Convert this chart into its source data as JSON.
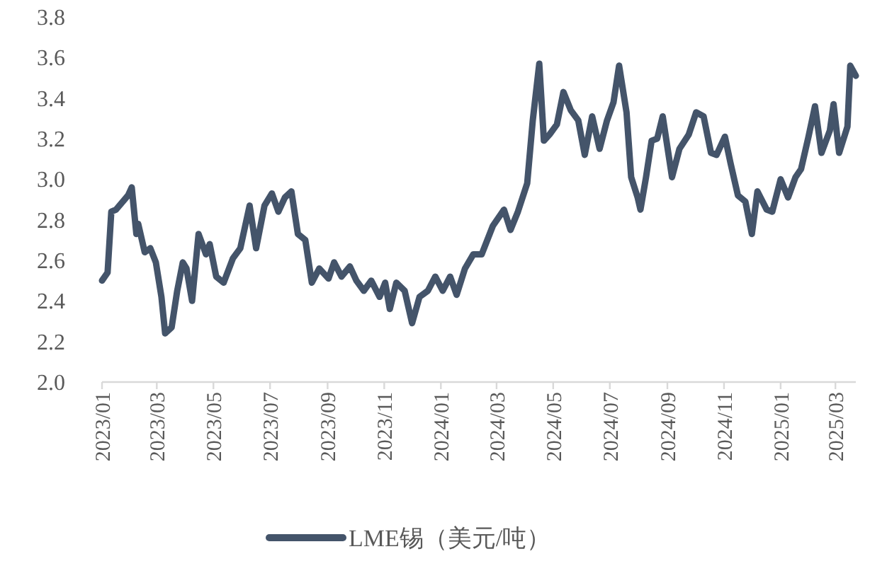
{
  "chart_data": {
    "type": "line",
    "legend": "bottom",
    "grid": false,
    "xlim": [
      "2023-01-01",
      "2025-03-23"
    ],
    "ylim": [
      2.0,
      3.8
    ],
    "yticks": [
      {
        "value": 2,
        "label": "2.0"
      },
      2.2,
      2.4,
      2.6,
      2.8,
      {
        "value": 3,
        "label": "3.0"
      },
      3.2,
      3.4,
      3.6,
      3.8
    ],
    "xticks": [
      {
        "value": "2023-01-01",
        "label": "2023/01"
      },
      {
        "value": "2023-03-01",
        "label": "2023/03"
      },
      {
        "value": "2023-05-01",
        "label": "2023/05"
      },
      {
        "value": "2023-07-01",
        "label": "2023/07"
      },
      {
        "value": "2023-09-01",
        "label": "2023/09"
      },
      {
        "value": "2023-11-01",
        "label": "2023/11"
      },
      {
        "value": "2024-01-01",
        "label": "2024/01"
      },
      {
        "value": "2024-03-01",
        "label": "2024/03"
      },
      {
        "value": "2024-05-01",
        "label": "2024/05"
      },
      {
        "value": "2024-07-01",
        "label": "2024/07"
      },
      {
        "value": "2024-09-01",
        "label": "2024/09"
      },
      {
        "value": "2024-11-01",
        "label": "2024/11"
      },
      {
        "value": "2025-01-01",
        "label": "2025/01"
      },
      {
        "value": "2025-03-01",
        "label": "2025/03"
      }
    ],
    "x": [
      "2023-01-01",
      "2023-01-07",
      "2023-01-11",
      "2023-01-16",
      "2023-01-29",
      "2023-02-02",
      "2023-02-07",
      "2023-02-09",
      "2023-02-16",
      "2023-02-22",
      "2023-02-28",
      "2023-03-06",
      "2023-03-10",
      "2023-03-17",
      "2023-03-23",
      "2023-03-29",
      "2023-04-02",
      "2023-04-08",
      "2023-04-15",
      "2023-04-23",
      "2023-04-27",
      "2023-05-04",
      "2023-05-12",
      "2023-05-22",
      "2023-05-30",
      "2023-06-09",
      "2023-06-16",
      "2023-06-25",
      "2023-07-03",
      "2023-07-10",
      "2023-07-17",
      "2023-07-24",
      "2023-07-31",
      "2023-08-08",
      "2023-08-15",
      "2023-08-23",
      "2023-09-02",
      "2023-09-08",
      "2023-09-16",
      "2023-09-25",
      "2023-10-02",
      "2023-10-10",
      "2023-10-18",
      "2023-10-27",
      "2023-11-02",
      "2023-11-07",
      "2023-11-14",
      "2023-11-23",
      "2023-12-01",
      "2023-12-09",
      "2023-12-18",
      "2023-12-26",
      "2024-01-03",
      "2024-01-11",
      "2024-01-18",
      "2024-01-27",
      "2024-02-05",
      "2024-02-14",
      "2024-02-26",
      "2024-03-09",
      "2024-03-16",
      "2024-03-24",
      "2024-04-03",
      "2024-04-09",
      "2024-04-16",
      "2024-04-21",
      "2024-04-27",
      "2024-05-05",
      "2024-05-12",
      "2024-05-20",
      "2024-05-28",
      "2024-06-04",
      "2024-06-12",
      "2024-06-20",
      "2024-06-28",
      "2024-07-05",
      "2024-07-11",
      "2024-07-19",
      "2024-07-24",
      "2024-07-31",
      "2024-08-03",
      "2024-08-09",
      "2024-08-15",
      "2024-08-21",
      "2024-08-27",
      "2024-09-06",
      "2024-09-14",
      "2024-09-24",
      "2024-10-02",
      "2024-10-10",
      "2024-10-18",
      "2024-10-24",
      "2024-11-02",
      "2024-11-08",
      "2024-11-16",
      "2024-11-24",
      "2024-12-01",
      "2024-12-07",
      "2024-12-17",
      "2024-12-23",
      "2025-01-01",
      "2025-01-09",
      "2025-01-17",
      "2025-01-23",
      "2025-01-31",
      "2025-02-07",
      "2025-02-14",
      "2025-02-23",
      "2025-02-27",
      "2025-03-05",
      "2025-03-14",
      "2025-03-17",
      "2025-03-23"
    ],
    "series": [
      {
        "name": "LME锡（美元/吨）",
        "color": "#44546a",
        "values": [
          2.5,
          2.54,
          2.84,
          2.85,
          2.92,
          2.96,
          2.73,
          2.78,
          2.64,
          2.66,
          2.59,
          2.42,
          2.24,
          2.27,
          2.45,
          2.59,
          2.56,
          2.4,
          2.73,
          2.63,
          2.68,
          2.52,
          2.49,
          2.61,
          2.66,
          2.87,
          2.66,
          2.87,
          2.93,
          2.84,
          2.91,
          2.94,
          2.73,
          2.7,
          2.49,
          2.56,
          2.51,
          2.59,
          2.52,
          2.57,
          2.5,
          2.45,
          2.5,
          2.42,
          2.49,
          2.36,
          2.49,
          2.45,
          2.29,
          2.42,
          2.45,
          2.52,
          2.45,
          2.52,
          2.43,
          2.56,
          2.63,
          2.63,
          2.77,
          2.85,
          2.75,
          2.84,
          2.98,
          3.29,
          3.57,
          3.19,
          3.22,
          3.27,
          3.43,
          3.34,
          3.29,
          3.12,
          3.31,
          3.15,
          3.29,
          3.38,
          3.56,
          3.33,
          3.01,
          2.91,
          2.85,
          3.01,
          3.19,
          3.2,
          3.31,
          3.01,
          3.15,
          3.22,
          3.33,
          3.31,
          3.13,
          3.12,
          3.21,
          3.08,
          2.92,
          2.89,
          2.73,
          2.94,
          2.85,
          2.84,
          3.0,
          2.91,
          3.01,
          3.05,
          3.21,
          3.36,
          3.13,
          3.24,
          3.37,
          3.13,
          3.26,
          3.56,
          3.51
        ]
      }
    ]
  }
}
